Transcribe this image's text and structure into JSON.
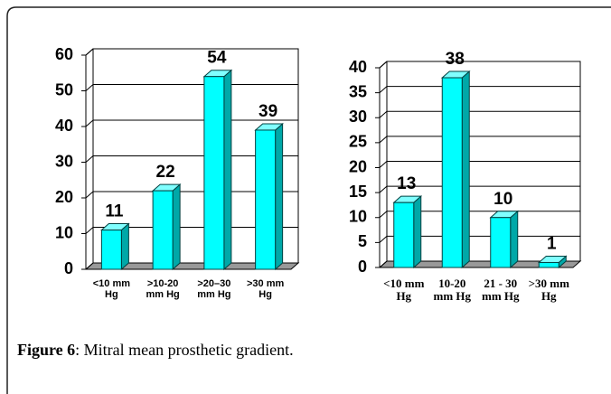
{
  "chart_data": [
    {
      "type": "bar",
      "categories": [
        "<10 mm\nHg",
        ">10-20\nmm Hg",
        ">20–30\nmm Hg",
        ">30 mm\nHg"
      ],
      "values": [
        11,
        22,
        54,
        39
      ],
      "color": "#00ffff",
      "ylim": [
        0,
        60
      ],
      "yticks": [
        0,
        10,
        20,
        30,
        40,
        50,
        60
      ],
      "grid": true
    },
    {
      "type": "bar",
      "categories": [
        "<10 mm\nHg",
        "10-20\nmm Hg",
        "21 - 30\nmm Hg",
        ">30 mm\nHg"
      ],
      "values": [
        13,
        38,
        10,
        1
      ],
      "color": "#00ffff",
      "ylim": [
        0,
        40
      ],
      "yticks": [
        0,
        5,
        10,
        15,
        20,
        25,
        30,
        35,
        40
      ],
      "grid": true
    }
  ],
  "caption": {
    "label": "Figure 6",
    "text": ": Mitral mean prosthetic gradient."
  }
}
